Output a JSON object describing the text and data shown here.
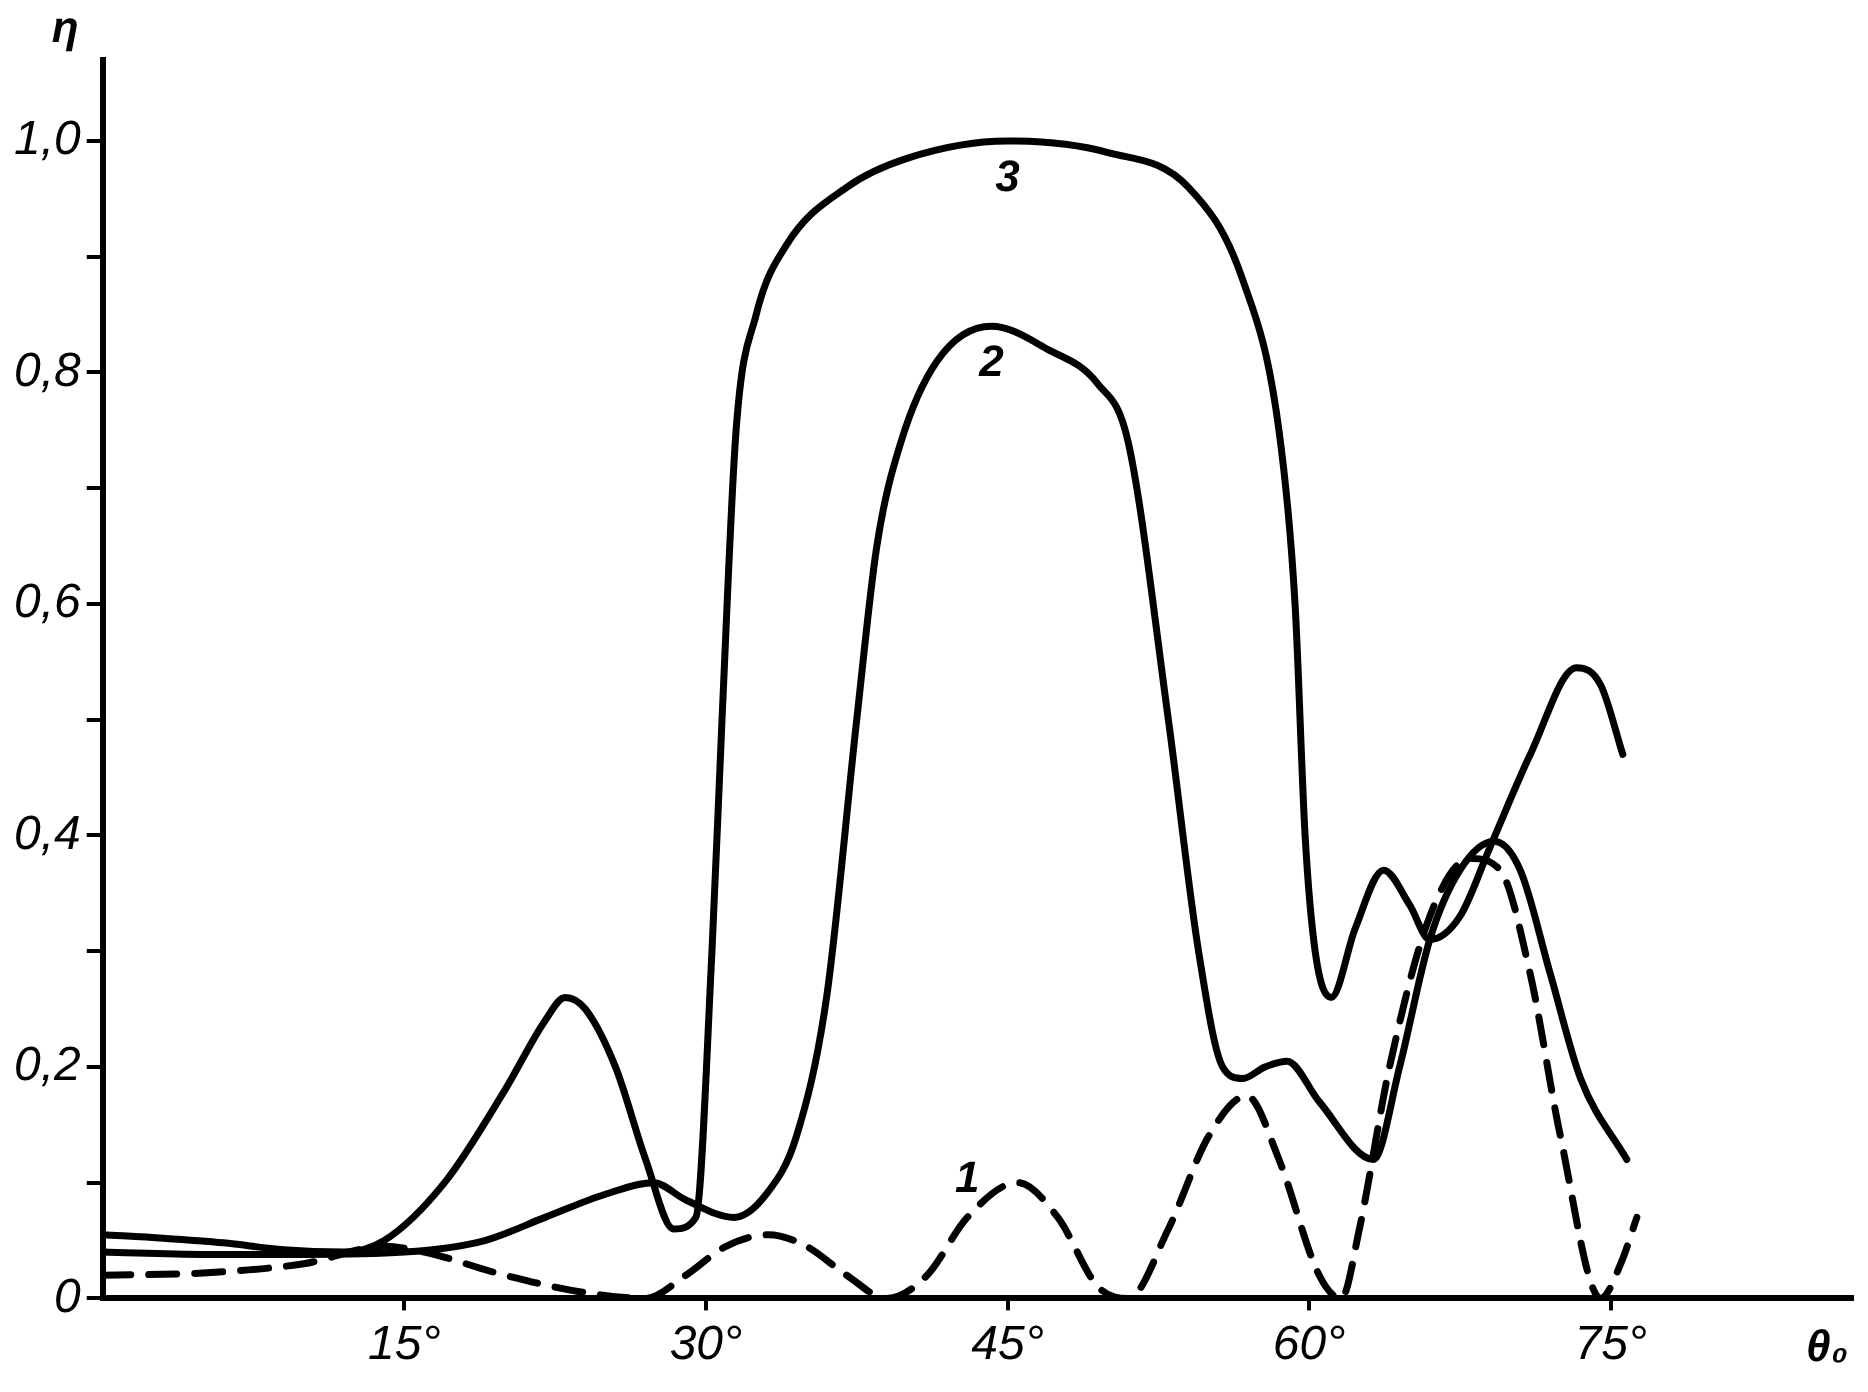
{
  "chart_data": {
    "type": "line",
    "xlabel": "θ₀",
    "ylabel": "η",
    "xlim": [
      0,
      87
    ],
    "ylim": [
      0,
      1.07
    ],
    "xticks": [
      {
        "value": 15,
        "label": "15°"
      },
      {
        "value": 30,
        "label": "30°"
      },
      {
        "value": 45,
        "label": "45°"
      },
      {
        "value": 60,
        "label": "60°"
      },
      {
        "value": 75,
        "label": "75°"
      }
    ],
    "yticks": [
      {
        "value": 0,
        "label": "0"
      },
      {
        "value": 0.1,
        "label": null
      },
      {
        "value": 0.2,
        "label": "0,2"
      },
      {
        "value": 0.3,
        "label": null
      },
      {
        "value": 0.4,
        "label": "0,4"
      },
      {
        "value": 0.5,
        "label": null
      },
      {
        "value": 0.6,
        "label": "0,6"
      },
      {
        "value": 0.7,
        "label": null
      },
      {
        "value": 0.8,
        "label": "0,8"
      },
      {
        "value": 0.9,
        "label": null
      },
      {
        "value": 1.0,
        "label": "1,0"
      }
    ],
    "grid": false,
    "legend": false,
    "marker": "none",
    "series": [
      {
        "name": "1",
        "color": "#000000",
        "line_style": "dashed",
        "x": [
          0,
          5,
          10,
          14,
          16,
          20,
          24,
          27,
          29,
          31,
          33.1,
          35,
          37,
          39,
          41,
          43,
          45.5,
          47.5,
          49.5,
          51,
          53,
          55,
          56.9,
          58.5,
          60.5,
          61.6,
          62.5,
          64,
          66,
          68,
          69.5,
          71,
          72.5,
          74.5,
          75.5,
          76.3
        ],
        "values": [
          0.02,
          0.022,
          0.03,
          0.045,
          0.04,
          0.02,
          0.005,
          0,
          0.02,
          0.045,
          0.055,
          0.045,
          0.02,
          0,
          0.02,
          0.07,
          0.1,
          0.07,
          0.01,
          0,
          0.06,
          0.14,
          0.175,
          0.12,
          0.02,
          0,
          0.06,
          0.2,
          0.33,
          0.38,
          0.37,
          0.28,
          0.14,
          0,
          0.03,
          0.07
        ]
      },
      {
        "name": "2",
        "color": "#000000",
        "line_style": "solid",
        "x": [
          0,
          5,
          10,
          15,
          19,
          22,
          25,
          27.4,
          29,
          31.4,
          33,
          34.5,
          36,
          37.5,
          38.5,
          39.7,
          41.5,
          44.2,
          47,
          49.5,
          51,
          53,
          54.5,
          55.7,
          56.7,
          57.8,
          58.9,
          60.5,
          63.2,
          64.5,
          66,
          67.5,
          69.2,
          70.5,
          72,
          73.5,
          75.8
        ],
        "values": [
          0.04,
          0.038,
          0.038,
          0.04,
          0.05,
          0.07,
          0.09,
          0.1,
          0.085,
          0.07,
          0.09,
          0.14,
          0.26,
          0.5,
          0.65,
          0.74,
          0.81,
          0.84,
          0.82,
          0.79,
          0.74,
          0.5,
          0.3,
          0.2,
          0.19,
          0.2,
          0.205,
          0.17,
          0.12,
          0.2,
          0.31,
          0.37,
          0.395,
          0.37,
          0.28,
          0.19,
          0.12
        ]
      },
      {
        "name": "3",
        "color": "#000000",
        "line_style": "solid",
        "x": [
          0,
          3,
          6,
          9,
          12,
          14,
          17,
          20,
          22,
          23,
          24,
          25.5,
          27,
          28.4,
          29.5,
          30.3,
          30.8,
          31.5,
          32.5,
          34,
          37,
          40,
          45,
          50,
          54,
          56.7,
          58.5,
          59.3,
          59.8,
          60.3,
          61.1,
          62.3,
          63.7,
          65,
          66,
          67.5,
          69,
          71,
          73.3,
          74.5,
          75.6
        ],
        "values": [
          0.055,
          0.052,
          0.048,
          0.042,
          0.04,
          0.05,
          0.1,
          0.18,
          0.24,
          0.26,
          0.25,
          0.2,
          0.12,
          0.06,
          0.07,
          0.3,
          0.5,
          0.75,
          0.85,
          0.91,
          0.96,
          0.985,
          1.0,
          0.99,
          0.96,
          0.88,
          0.75,
          0.6,
          0.4,
          0.3,
          0.26,
          0.32,
          0.37,
          0.34,
          0.31,
          0.33,
          0.39,
          0.47,
          0.545,
          0.53,
          0.47
        ]
      }
    ]
  }
}
